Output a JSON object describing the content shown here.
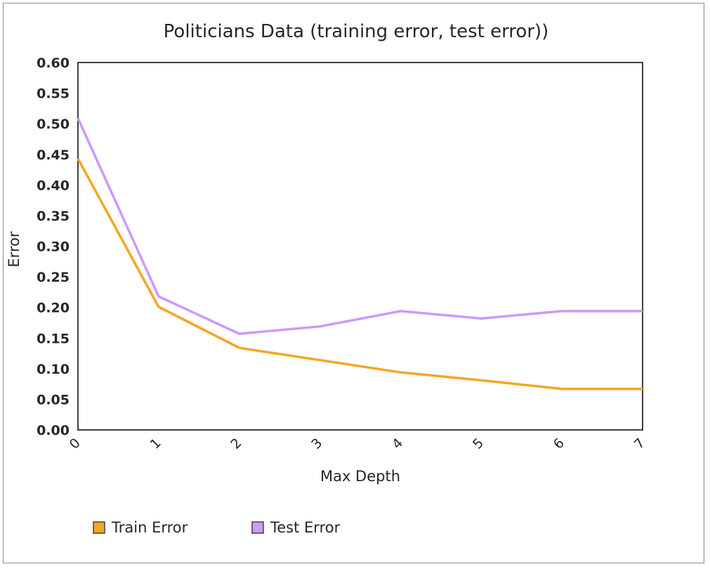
{
  "chart_data": {
    "type": "line",
    "title": "Politicians  Data (training error, test error))",
    "xlabel": "Max Depth",
    "ylabel": "Error",
    "categories": [
      "0",
      "1",
      "2",
      "3",
      "4",
      "5",
      "6",
      "7"
    ],
    "ylim": [
      0,
      0.6
    ],
    "yticks": [
      "0.00",
      "0.05",
      "0.10",
      "0.15",
      "0.20",
      "0.25",
      "0.30",
      "0.35",
      "0.40",
      "0.45",
      "0.50",
      "0.55",
      "0.60"
    ],
    "grid": false,
    "legend_position": "bottom",
    "series": [
      {
        "name": "Train Error",
        "color": "#F5A623",
        "values": [
          0.443,
          0.201,
          0.134,
          0.114,
          0.094,
          0.081,
          0.067,
          0.067
        ]
      },
      {
        "name": "Test Error",
        "color": "#CC99FF",
        "values": [
          0.509,
          0.218,
          0.157,
          0.169,
          0.194,
          0.182,
          0.194,
          0.194
        ]
      }
    ]
  }
}
